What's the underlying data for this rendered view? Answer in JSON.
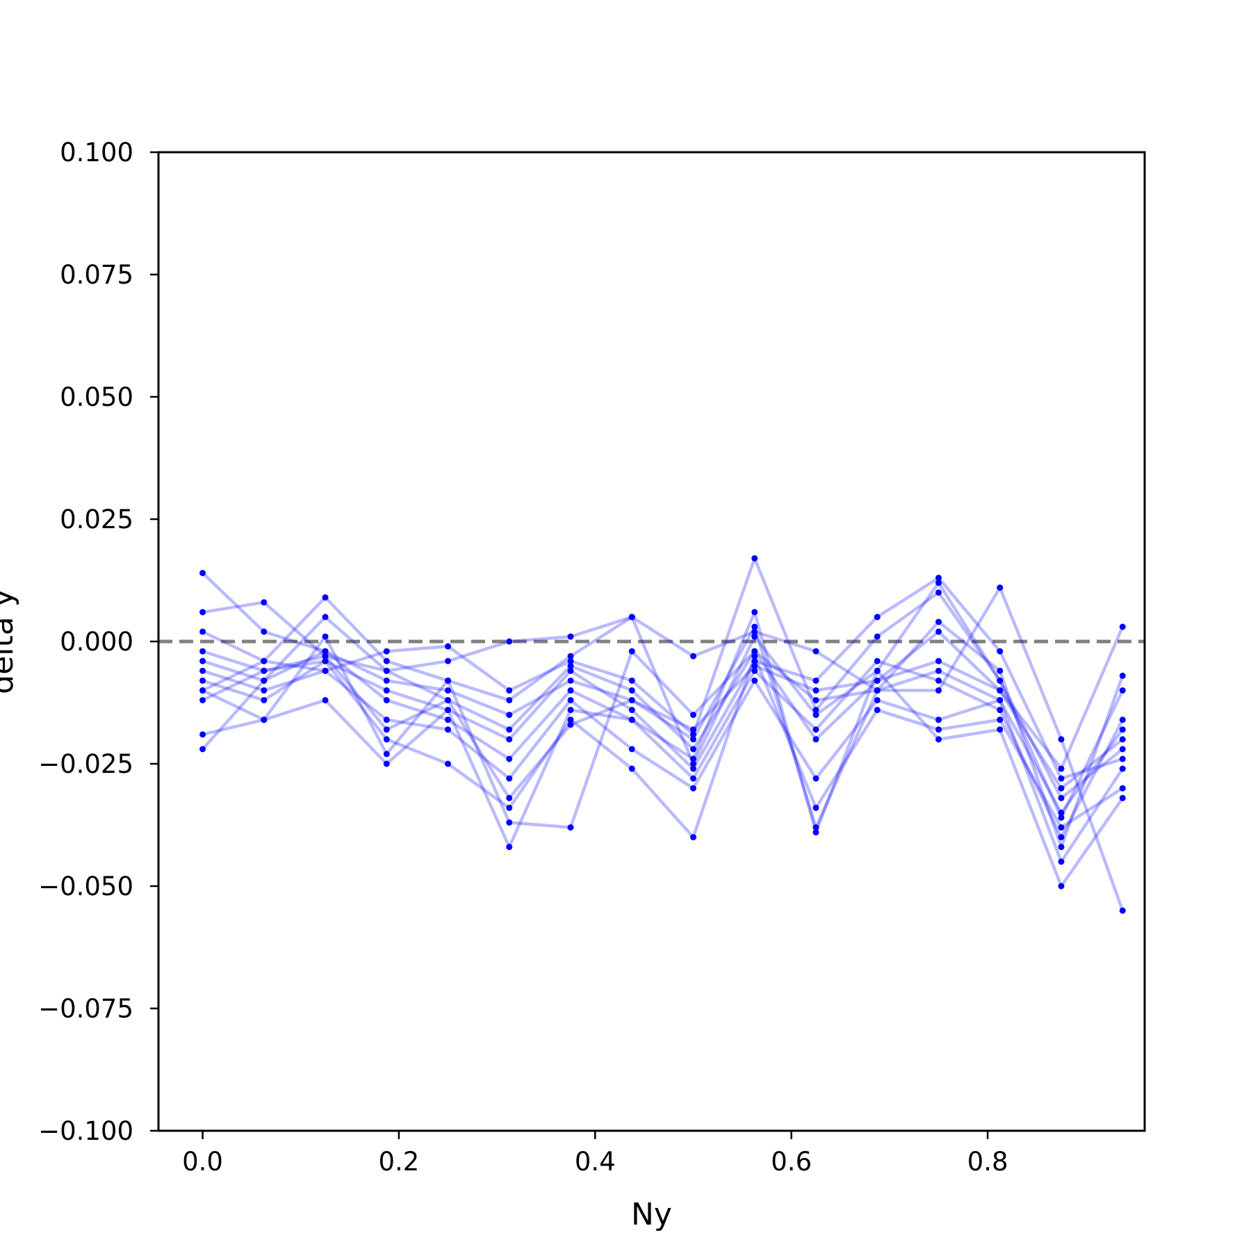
{
  "chart_data": {
    "type": "line",
    "title": "",
    "xlabel": "Ny",
    "ylabel": "delta y",
    "xlim": [
      -0.045,
      0.96
    ],
    "ylim": [
      -0.1,
      0.1
    ],
    "x_ticks": [
      0.0,
      0.2,
      0.4,
      0.6,
      0.8
    ],
    "x_tick_labels": [
      "0.0",
      "0.2",
      "0.4",
      "0.6",
      "0.8"
    ],
    "y_ticks": [
      -0.1,
      -0.075,
      -0.05,
      -0.025,
      0.0,
      0.025,
      0.05,
      0.075,
      0.1
    ],
    "y_tick_labels": [
      "−0.100",
      "−0.075",
      "−0.050",
      "−0.025",
      "0.000",
      "0.025",
      "0.050",
      "0.075",
      "0.100"
    ],
    "reference_line": {
      "y": 0.0,
      "style": "dashed",
      "color": "#808080"
    },
    "series_color": "#0000ff",
    "x": [
      0.0,
      0.0625,
      0.125,
      0.1875,
      0.25,
      0.3125,
      0.375,
      0.4375,
      0.5,
      0.5625,
      0.625,
      0.6875,
      0.75,
      0.8125,
      0.875,
      0.9375
    ],
    "series": [
      {
        "values": [
          0.014,
          0.002,
          -0.002,
          -0.008,
          -0.01,
          -0.015,
          -0.008,
          -0.012,
          -0.018,
          -0.005,
          -0.01,
          -0.008,
          -0.004,
          -0.01,
          -0.03,
          -0.02
        ]
      },
      {
        "values": [
          0.006,
          0.008,
          -0.003,
          -0.006,
          -0.012,
          -0.018,
          -0.005,
          -0.01,
          -0.022,
          -0.002,
          -0.012,
          -0.01,
          -0.006,
          -0.012,
          -0.035,
          -0.018
        ]
      },
      {
        "values": [
          0.002,
          -0.004,
          0.009,
          -0.004,
          -0.008,
          -0.012,
          -0.003,
          0.005,
          -0.025,
          0.001,
          -0.015,
          -0.006,
          0.012,
          -0.008,
          -0.032,
          -0.022
        ]
      },
      {
        "values": [
          -0.002,
          -0.006,
          -0.004,
          -0.01,
          -0.014,
          -0.02,
          -0.006,
          -0.014,
          -0.026,
          -0.004,
          -0.008,
          0.005,
          0.013,
          -0.002,
          -0.028,
          -0.024
        ]
      },
      {
        "values": [
          -0.004,
          -0.008,
          -0.002,
          -0.012,
          -0.016,
          -0.024,
          -0.01,
          -0.016,
          -0.028,
          -0.006,
          -0.018,
          -0.004,
          -0.008,
          -0.014,
          -0.04,
          -0.016
        ]
      },
      {
        "values": [
          -0.006,
          -0.01,
          -0.006,
          -0.016,
          -0.018,
          -0.028,
          -0.012,
          -0.022,
          -0.03,
          -0.008,
          -0.028,
          -0.012,
          -0.016,
          -0.012,
          -0.045,
          -0.026
        ]
      },
      {
        "values": [
          -0.008,
          -0.012,
          -0.004,
          -0.02,
          -0.025,
          -0.034,
          -0.016,
          -0.026,
          -0.04,
          -0.003,
          -0.034,
          -0.014,
          -0.018,
          -0.016,
          -0.038,
          -0.03
        ]
      },
      {
        "values": [
          -0.01,
          -0.016,
          -0.012,
          -0.025,
          -0.014,
          -0.042,
          -0.014,
          -0.016,
          -0.024,
          0.006,
          -0.039,
          -0.006,
          -0.02,
          -0.018,
          -0.05,
          -0.032
        ]
      },
      {
        "values": [
          -0.012,
          -0.006,
          -0.003,
          -0.018,
          -0.012,
          -0.032,
          -0.017,
          -0.012,
          -0.02,
          0.003,
          -0.038,
          -0.01,
          -0.01,
          0.011,
          -0.02,
          -0.055
        ]
      },
      {
        "values": [
          -0.019,
          -0.016,
          0.001,
          -0.023,
          -0.008,
          -0.037,
          -0.038,
          -0.002,
          -0.015,
          -0.002,
          -0.02,
          -0.008,
          0.002,
          -0.01,
          -0.026,
          0.003
        ]
      },
      {
        "values": [
          -0.022,
          -0.008,
          0.005,
          -0.006,
          -0.004,
          0.0,
          0.001,
          0.005,
          -0.003,
          0.002,
          -0.002,
          -0.01,
          0.004,
          -0.006,
          -0.042,
          -0.007
        ]
      },
      {
        "values": [
          -0.01,
          -0.004,
          -0.006,
          -0.002,
          -0.001,
          -0.01,
          -0.004,
          -0.008,
          -0.019,
          0.017,
          -0.014,
          0.001,
          0.01,
          -0.008,
          -0.036,
          -0.01
        ]
      }
    ]
  }
}
